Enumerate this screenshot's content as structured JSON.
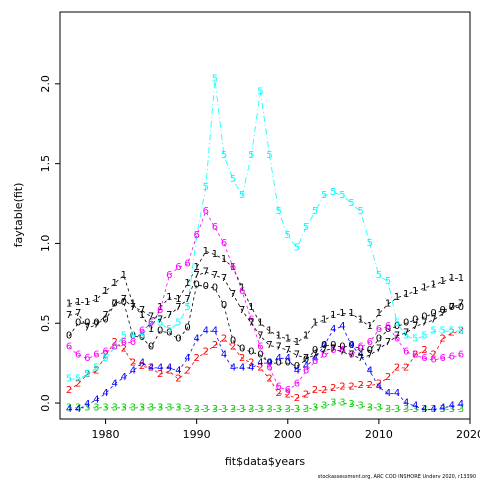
{
  "chart_data": {
    "type": "line",
    "title": "",
    "xlabel": "fit$data$years",
    "ylabel": "faytable(fit)",
    "xlim": [
      1975,
      2020
    ],
    "ylim": [
      -0.1,
      2.45
    ],
    "x_ticks": [
      1980,
      1990,
      2000,
      2010,
      2020
    ],
    "y_ticks": [
      0.0,
      0.5,
      1.0,
      1.5,
      2.0
    ],
    "y_tick_labels": [
      "0.0",
      "0.5",
      "1.0",
      "1.5",
      "2.0"
    ],
    "x_tick_labels": [
      "1980",
      "1990",
      "2000",
      "2010",
      "2020"
    ],
    "grid": false,
    "legend": "none",
    "footnote": "stockassessment.org, ARC COD INSHORE Underv 2020, r13390",
    "x": [
      1976,
      1977,
      1978,
      1979,
      1980,
      1981,
      1982,
      1983,
      1984,
      1985,
      1986,
      1987,
      1988,
      1989,
      1990,
      1991,
      1992,
      1993,
      1994,
      1995,
      1996,
      1997,
      1998,
      1999,
      2000,
      2001,
      2002,
      2003,
      2004,
      2005,
      2006,
      2007,
      2008,
      2009,
      2010,
      2011,
      2012,
      2013,
      2014,
      2015,
      2016,
      2017,
      2018,
      2019
    ],
    "series": [
      {
        "label": "0",
        "color": "#000000",
        "values": [
          0.42,
          0.5,
          0.5,
          0.5,
          0.52,
          0.62,
          0.63,
          0.42,
          0.41,
          0.35,
          0.45,
          0.44,
          0.4,
          0.47,
          0.74,
          0.73,
          0.72,
          0.61,
          0.39,
          0.34,
          0.32,
          0.3,
          0.25,
          0.25,
          0.25,
          0.23,
          0.27,
          0.33,
          0.36,
          0.36,
          0.35,
          0.36,
          0.34,
          0.33,
          0.4,
          0.46,
          0.48,
          0.5,
          0.52,
          0.54,
          0.56,
          0.58,
          0.6,
          0.6
        ]
      },
      {
        "label": "1",
        "color": "#000000",
        "values": [
          0.62,
          0.63,
          0.63,
          0.65,
          0.7,
          0.75,
          0.8,
          0.62,
          0.55,
          0.46,
          0.6,
          0.66,
          0.65,
          0.75,
          0.85,
          0.95,
          0.93,
          0.9,
          0.85,
          0.72,
          0.6,
          0.5,
          0.45,
          0.42,
          0.4,
          0.38,
          0.42,
          0.5,
          0.52,
          0.55,
          0.56,
          0.56,
          0.52,
          0.48,
          0.56,
          0.62,
          0.66,
          0.68,
          0.7,
          0.72,
          0.74,
          0.76,
          0.78,
          0.78
        ]
      },
      {
        "label": "2",
        "color": "#ff0000",
        "values": [
          0.08,
          0.12,
          0.18,
          0.2,
          0.3,
          0.38,
          0.34,
          0.25,
          0.23,
          0.22,
          0.18,
          0.2,
          0.15,
          0.2,
          0.28,
          0.32,
          0.36,
          0.4,
          0.35,
          0.28,
          0.25,
          0.22,
          0.15,
          0.06,
          0.05,
          0.03,
          0.05,
          0.08,
          0.08,
          0.09,
          0.1,
          0.1,
          0.11,
          0.11,
          0.12,
          0.16,
          0.22,
          0.22,
          0.3,
          0.33,
          0.3,
          0.4,
          0.44,
          0.45
        ]
      },
      {
        "label": "3",
        "color": "#00cd00",
        "values": [
          -0.03,
          -0.03,
          -0.03,
          -0.03,
          -0.03,
          -0.03,
          -0.03,
          -0.03,
          -0.03,
          -0.03,
          -0.03,
          -0.03,
          -0.03,
          -0.04,
          -0.04,
          -0.04,
          -0.04,
          -0.04,
          -0.04,
          -0.04,
          -0.04,
          -0.04,
          -0.04,
          -0.04,
          -0.04,
          -0.04,
          -0.04,
          -0.03,
          -0.02,
          0.0,
          0.0,
          -0.01,
          -0.02,
          -0.03,
          -0.03,
          -0.04,
          -0.04,
          -0.04,
          -0.04,
          -0.04,
          -0.04,
          -0.04,
          -0.04,
          -0.04
        ]
      },
      {
        "label": "4",
        "color": "#0000ff",
        "values": [
          -0.04,
          -0.04,
          -0.01,
          0.02,
          0.06,
          0.12,
          0.16,
          0.2,
          0.25,
          0.22,
          0.22,
          0.22,
          0.2,
          0.28,
          0.4,
          0.45,
          0.45,
          0.3,
          0.22,
          0.22,
          0.22,
          0.25,
          0.25,
          0.28,
          0.28,
          0.2,
          0.23,
          0.28,
          0.36,
          0.46,
          0.48,
          0.36,
          0.3,
          0.2,
          0.1,
          0.06,
          0.06,
          0.0,
          -0.02,
          -0.04,
          -0.04,
          -0.03,
          -0.02,
          -0.01
        ]
      },
      {
        "label": "5",
        "color": "#00ffff",
        "values": [
          0.15,
          0.15,
          0.18,
          0.22,
          0.28,
          0.35,
          0.42,
          0.42,
          0.42,
          0.5,
          0.5,
          0.46,
          0.5,
          0.6,
          1.05,
          1.35,
          2.03,
          1.55,
          1.4,
          1.3,
          1.55,
          1.95,
          1.55,
          1.2,
          1.05,
          0.97,
          1.1,
          1.2,
          1.3,
          1.32,
          1.3,
          1.25,
          1.2,
          1.0,
          0.8,
          0.76,
          0.5,
          0.42,
          0.4,
          0.42,
          0.45,
          0.45,
          0.45,
          0.45
        ]
      },
      {
        "label": "6",
        "color": "#ff00ff",
        "values": [
          0.35,
          0.3,
          0.28,
          0.3,
          0.32,
          0.35,
          0.38,
          0.38,
          0.45,
          0.5,
          0.58,
          0.8,
          0.85,
          0.87,
          1.05,
          1.2,
          1.1,
          1.0,
          0.85,
          0.7,
          0.52,
          0.35,
          0.22,
          0.1,
          0.08,
          0.12,
          0.2,
          0.26,
          0.3,
          0.33,
          0.33,
          0.3,
          0.35,
          0.38,
          0.46,
          0.48,
          0.4,
          0.32,
          0.3,
          0.28,
          0.27,
          0.28,
          0.29,
          0.3
        ]
      },
      {
        "label": "7",
        "color": "#000000",
        "values": [
          0.55,
          0.56,
          0.47,
          0.49,
          0.55,
          0.62,
          0.65,
          0.6,
          0.58,
          0.54,
          0.52,
          0.55,
          0.6,
          0.65,
          0.8,
          0.82,
          0.8,
          0.78,
          0.68,
          0.58,
          0.5,
          0.42,
          0.36,
          0.35,
          0.33,
          0.3,
          0.28,
          0.3,
          0.33,
          0.34,
          0.32,
          0.3,
          0.28,
          0.3,
          0.34,
          0.38,
          0.42,
          0.44,
          0.48,
          0.5,
          0.52,
          0.56,
          0.6,
          0.62
        ]
      }
    ]
  }
}
